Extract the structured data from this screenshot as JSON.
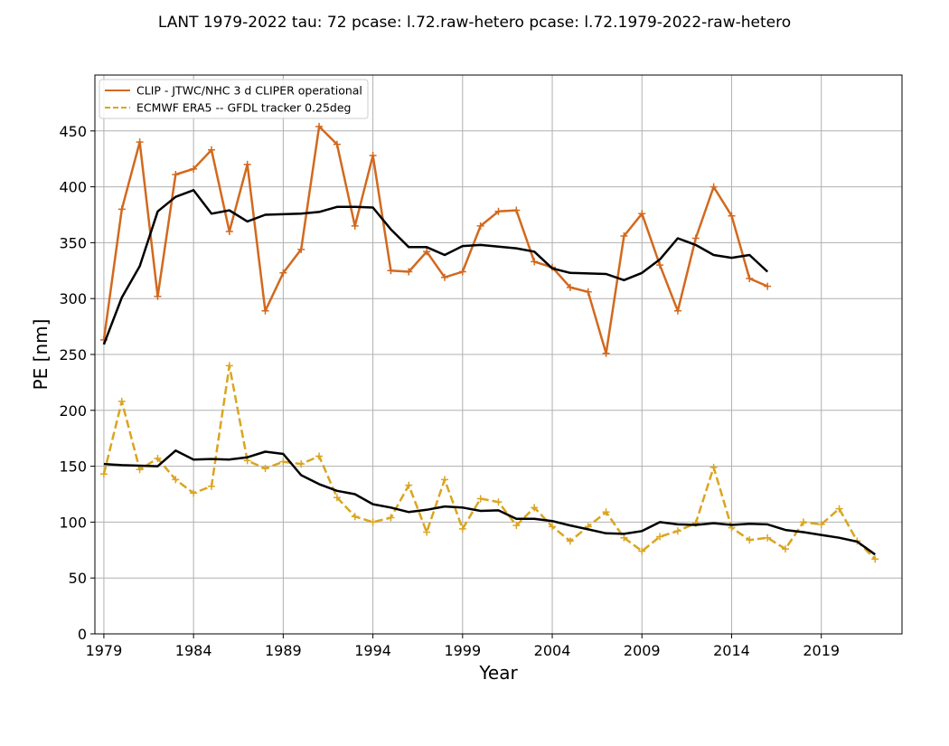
{
  "chart_data": {
    "type": "line",
    "title": "LANT 1979-2022 tau: 72 pcase: l.72.raw-hetero pcase: l.72.1979-2022-raw-hetero",
    "xlabel": "Year",
    "ylabel": "PE [nm]",
    "xlim": [
      1978.5,
      2023.5
    ],
    "ylim": [
      0,
      500
    ],
    "xticks": [
      1979,
      1984,
      1989,
      1994,
      1999,
      2004,
      2009,
      2014,
      2019
    ],
    "yticks": [
      0,
      50,
      100,
      150,
      200,
      250,
      300,
      350,
      400,
      450
    ],
    "grid": true,
    "legend_position": "top-left",
    "series": [
      {
        "name": "CLIP - JTWC/NHC 3 d CLIPER operational",
        "color": "#d2691e",
        "style": "solid",
        "marker": "plus",
        "x": [
          1979,
          1980,
          1981,
          1982,
          1983,
          1984,
          1985,
          1986,
          1987,
          1988,
          1989,
          1990,
          1991,
          1992,
          1993,
          1994,
          1995,
          1996,
          1997,
          1998,
          1999,
          2000,
          2001,
          2002,
          2003,
          2004,
          2005,
          2006,
          2007,
          2008,
          2009,
          2010,
          2011,
          2012,
          2013,
          2014,
          2015,
          2016
        ],
        "values": [
          263,
          380,
          440,
          302,
          411,
          416,
          433,
          360,
          420,
          289,
          323,
          344,
          454,
          438,
          365,
          428,
          325,
          324,
          342,
          319,
          324,
          365,
          378,
          379,
          333,
          328,
          310,
          306,
          251,
          356,
          376,
          330,
          289,
          354,
          400,
          374,
          318,
          311
        ]
      },
      {
        "name": "",
        "color": "#000000",
        "style": "solid",
        "marker": "none",
        "x": [
          1979,
          1980,
          1981,
          1982,
          1983,
          1984,
          1985,
          1986,
          1987,
          1988,
          1989,
          1990,
          1991,
          1992,
          1993,
          1994,
          1995,
          1996,
          1997,
          1998,
          1999,
          2000,
          2001,
          2002,
          2003,
          2004,
          2005,
          2006,
          2007,
          2008,
          2009,
          2010,
          2011,
          2012,
          2013,
          2014,
          2015,
          2016
        ],
        "values": [
          259,
          301,
          329,
          378,
          391,
          397,
          376,
          379,
          369,
          375,
          375.5,
          376,
          377.5,
          382,
          382,
          381.5,
          362,
          346,
          346,
          339,
          347,
          348,
          346.5,
          345,
          342,
          327,
          323,
          322.5,
          322,
          316.5,
          323,
          335,
          354,
          348,
          339,
          336.5,
          339,
          324
        ]
      },
      {
        "name": "ECMWF ERA5 -- GFDL tracker 0.25deg",
        "color": "#daa520",
        "style": "dashed",
        "marker": "plus",
        "x": [
          1979,
          1980,
          1981,
          1982,
          1983,
          1984,
          1985,
          1986,
          1987,
          1988,
          1989,
          1990,
          1991,
          1992,
          1993,
          1994,
          1995,
          1996,
          1997,
          1998,
          1999,
          2000,
          2001,
          2002,
          2003,
          2004,
          2005,
          2006,
          2007,
          2008,
          2009,
          2010,
          2011,
          2012,
          2013,
          2014,
          2015,
          2016,
          2017,
          2018,
          2019,
          2020,
          2021,
          2022
        ],
        "values": [
          143,
          208,
          147,
          157,
          138,
          126,
          132,
          240,
          155,
          148,
          154,
          152,
          159,
          122,
          105,
          100,
          104,
          133,
          91,
          138,
          94,
          121,
          118,
          97,
          113,
          96,
          83,
          96,
          109,
          86,
          74,
          87,
          92,
          99,
          149,
          95,
          84,
          86,
          76,
          100,
          98,
          112,
          83,
          67
        ]
      },
      {
        "name": "",
        "color": "#000000",
        "style": "solid",
        "marker": "none",
        "x": [
          1979,
          1980,
          1981,
          1982,
          1983,
          1984,
          1985,
          1986,
          1987,
          1988,
          1989,
          1990,
          1991,
          1992,
          1993,
          1994,
          1995,
          1996,
          1997,
          1998,
          1999,
          2000,
          2001,
          2002,
          2003,
          2004,
          2005,
          2006,
          2007,
          2008,
          2009,
          2010,
          2011,
          2012,
          2013,
          2014,
          2015,
          2016,
          2017,
          2018,
          2019,
          2020,
          2021,
          2022
        ],
        "values": [
          152,
          151,
          150.5,
          150,
          164,
          156,
          156.5,
          156,
          158,
          163,
          161,
          142,
          134,
          128,
          125,
          116,
          113,
          109,
          111,
          114,
          113,
          110,
          110.5,
          103,
          103,
          101,
          97,
          93.5,
          90,
          89.5,
          92,
          100,
          98,
          97.5,
          99,
          97.5,
          98.5,
          98,
          93,
          91,
          88.5,
          86,
          82.5,
          71
        ]
      }
    ]
  }
}
